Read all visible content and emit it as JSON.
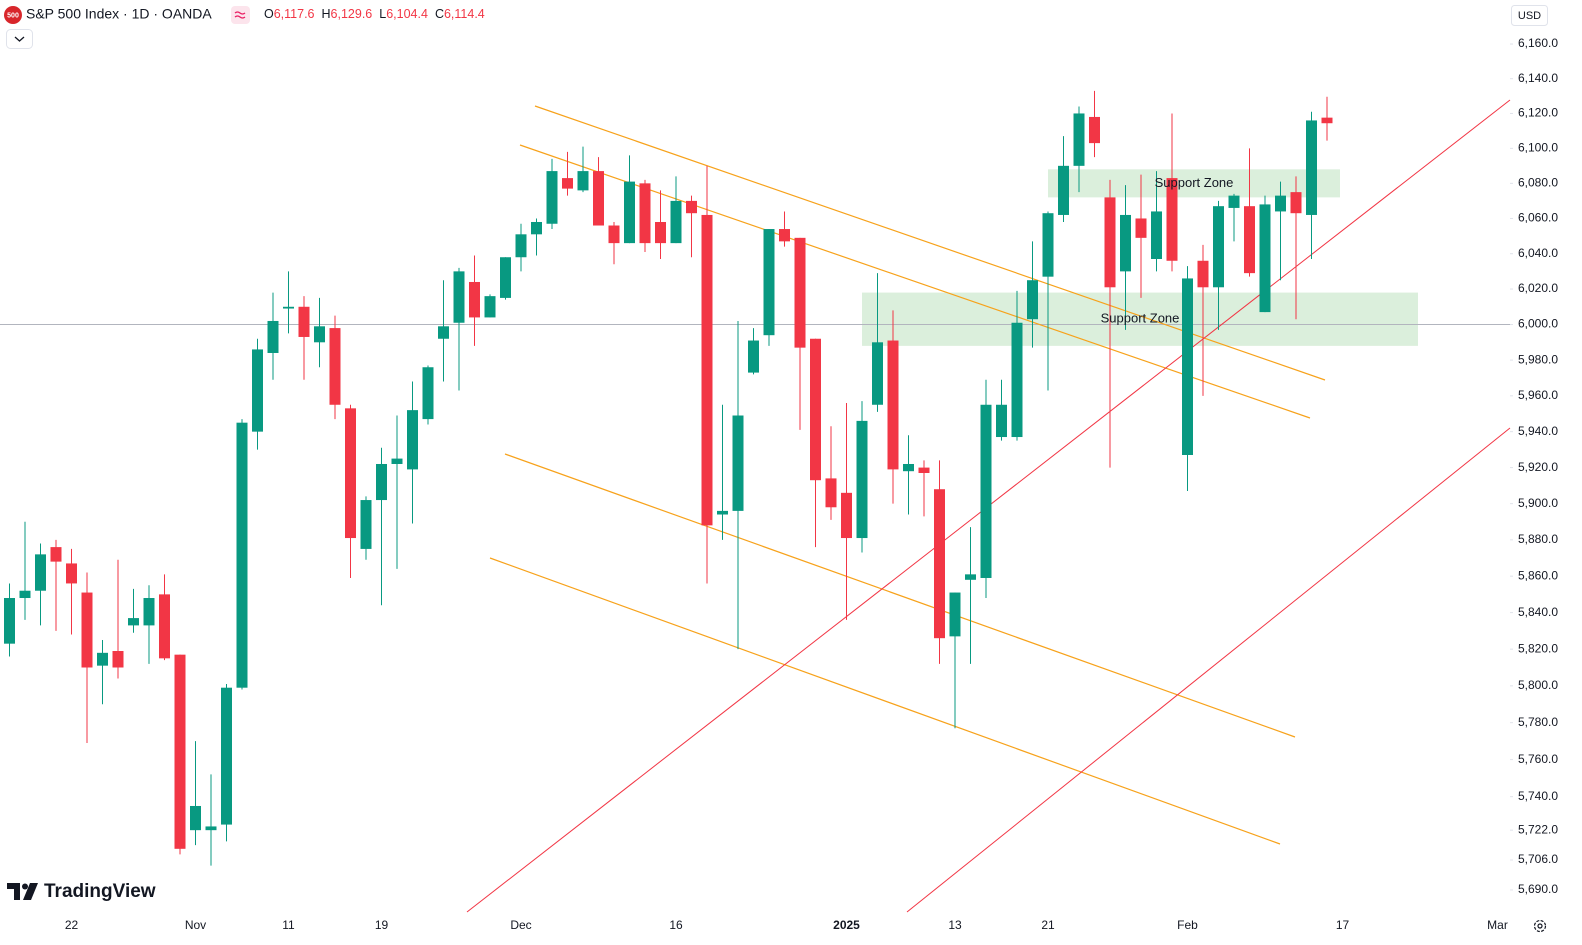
{
  "chart_data": {
    "type": "candlestick",
    "title": "S&P 500 Index · 1D · OANDA",
    "symbol_badge": "500",
    "currency": "USD",
    "brand": "TradingView",
    "ohlc_header": [
      {
        "key": "O",
        "value": 6117.6,
        "label": "6,117.6"
      },
      {
        "key": "H",
        "value": 6129.6,
        "label": "6,129.6"
      },
      {
        "key": "L",
        "value": 6104.4,
        "label": "6,104.4"
      },
      {
        "key": "C",
        "value": 6114.4,
        "label": "6,114.4"
      }
    ],
    "log": true,
    "up_color": "#089981",
    "down_color": "#f23645",
    "ylim": [
      5679.3,
      6185.5
    ],
    "yticks": [
      {
        "value": 6160,
        "label": "6,160.0"
      },
      {
        "value": 6140,
        "label": "6,140.0"
      },
      {
        "value": 6120,
        "label": "6,120.0"
      },
      {
        "value": 6100,
        "label": "6,100.0"
      },
      {
        "value": 6080,
        "label": "6,080.0"
      },
      {
        "value": 6060,
        "label": "6,060.0"
      },
      {
        "value": 6040,
        "label": "6,040.0"
      },
      {
        "value": 6020,
        "label": "6,020.0"
      },
      {
        "value": 6000,
        "label": "6,000.0"
      },
      {
        "value": 5980,
        "label": "5,980.0"
      },
      {
        "value": 5960,
        "label": "5,960.0"
      },
      {
        "value": 5940,
        "label": "5,940.0"
      },
      {
        "value": 5920,
        "label": "5,920.0"
      },
      {
        "value": 5900,
        "label": "5,900.0"
      },
      {
        "value": 5880,
        "label": "5,880.0"
      },
      {
        "value": 5860,
        "label": "5,860.0"
      },
      {
        "value": 5840,
        "label": "5,840.0"
      },
      {
        "value": 5820,
        "label": "5,820.0"
      },
      {
        "value": 5800,
        "label": "5,800.0"
      },
      {
        "value": 5780,
        "label": "5,780.0"
      },
      {
        "value": 5760,
        "label": "5,760.0"
      },
      {
        "value": 5740,
        "label": "5,740.0"
      },
      {
        "value": 5722,
        "label": "5,722.0"
      },
      {
        "value": 5706,
        "label": "5,706.0"
      },
      {
        "value": 5690,
        "label": "5,690.0"
      }
    ],
    "price_line": 6000,
    "annotations": [
      {
        "text": "Support Zone",
        "range": [
          6072,
          6088
        ]
      },
      {
        "text": "Support Zone",
        "range": [
          5988,
          6018
        ]
      }
    ],
    "categories": [
      null,
      null,
      null,
      null,
      "22",
      null,
      null,
      null,
      null,
      null,
      null,
      null,
      "Nov",
      null,
      null,
      null,
      null,
      null,
      "11",
      null,
      null,
      null,
      null,
      null,
      "19",
      null,
      null,
      null,
      null,
      null,
      null,
      null,
      null,
      "Dec",
      null,
      null,
      null,
      null,
      null,
      null,
      null,
      null,
      null,
      "16",
      null,
      null,
      null,
      null,
      null,
      null,
      null,
      null,
      null,
      null,
      "2025",
      null,
      null,
      null,
      null,
      null,
      null,
      "13",
      null,
      null,
      null,
      null,
      null,
      "21",
      null,
      null,
      null,
      null,
      null,
      null,
      null,
      null,
      "Feb",
      null,
      null,
      null,
      null,
      null,
      null,
      null,
      null,
      null,
      "17",
      null,
      null,
      null,
      null,
      null,
      null,
      null,
      null,
      null,
      "Mar"
    ],
    "open": [
      5823,
      5848,
      5852,
      5876,
      5867,
      5851,
      5811,
      5819,
      5833,
      5833,
      5850,
      5817,
      5722,
      5722,
      5725,
      5799,
      5940,
      5984,
      6009,
      6010,
      5990,
      5998,
      5953,
      5875,
      5902,
      5922,
      5919,
      5947,
      5992,
      6001,
      6024,
      6004,
      6015,
      6038,
      6051,
      6057,
      6083,
      6076,
      6087,
      6056,
      6046,
      6080,
      6058,
      6046,
      6070,
      6062,
      5894,
      5896,
      5973,
      5994,
      6054,
      6049,
      5992,
      5914,
      5906,
      5881,
      5955,
      5991,
      5918,
      5920,
      5908,
      5827,
      5858,
      5859,
      5937,
      5937,
      6003,
      6027,
      6062,
      6090,
      6118,
      6072,
      6030,
      6060,
      6037,
      6083,
      5927,
      6036,
      6021,
      6066,
      6067,
      6007,
      6064,
      6075,
      6062,
      6117.6,
      null,
      null,
      null,
      null,
      null,
      null,
      null,
      null,
      null,
      null,
      null
    ],
    "high": [
      5856,
      5890,
      5878,
      5880,
      5875,
      5862,
      5825,
      5869,
      5853,
      5855,
      5861,
      5817,
      5770,
      5752,
      5801,
      5947,
      5992,
      6018,
      6030,
      6016,
      6015,
      6005,
      5955,
      5904,
      5931,
      5949,
      5968,
      5977,
      6025,
      6032,
      6039,
      6017,
      6038,
      6057,
      6060,
      6094,
      6098,
      6101,
      6095,
      6058,
      6096,
      6082,
      6076,
      6084,
      6073,
      6090,
      5955,
      6002,
      5998,
      6054,
      6064,
      6049,
      5992,
      5943,
      5956,
      5957,
      6029,
      6008,
      5938,
      5924,
      5924,
      5851,
      5887,
      5969,
      5969,
      6019,
      6047,
      6064,
      6107,
      6124,
      6133,
      6082,
      6079,
      6085,
      6087,
      6120,
      6033,
      6045,
      6070,
      6074,
      6100,
      6073,
      6081,
      6084,
      6121,
      6129.6,
      null,
      null,
      null,
      null,
      null,
      null,
      null,
      null,
      null,
      null,
      null
    ],
    "low": [
      5816,
      5836,
      5833,
      5830,
      5828,
      5769,
      5790,
      5804,
      5829,
      5812,
      5814,
      5709,
      5714,
      5703,
      5716,
      5798,
      5930,
      5969,
      5995,
      5969,
      5976,
      5947,
      5859,
      5869,
      5844,
      5864,
      5889,
      5944,
      5968,
      5963,
      5988,
      6004,
      6014,
      6030,
      6039,
      6054,
      6073,
      6075,
      6056,
      6034,
      6046,
      6041,
      6037,
      6046,
      6038,
      5856,
      5880,
      5820,
      5972,
      5988,
      6044,
      5941,
      5876,
      5891,
      5836,
      5873,
      5951,
      5900,
      5894,
      5893,
      5812,
      5777,
      5812,
      5848,
      5935,
      5935,
      5987,
      5963,
      6058,
      6075,
      6095,
      5920,
      5997,
      6015,
      6030,
      6030,
      5907,
      5960,
      5997,
      6047,
      6027,
      6007,
      6025,
      6003,
      6037,
      6104.4,
      null,
      null,
      null,
      null,
      null,
      null,
      null,
      null,
      null,
      null,
      null
    ],
    "close": [
      5848,
      5852,
      5872,
      5868,
      5856,
      5810,
      5818,
      5810,
      5837,
      5848,
      5815,
      5712,
      5735,
      5724,
      5799,
      5945,
      5986,
      6002,
      6010,
      5993,
      5999,
      5955,
      5881,
      5902,
      5922,
      5925,
      5952,
      5976,
      5999,
      6030,
      6004,
      6016,
      6038,
      6051,
      6058,
      6087,
      6077,
      6087,
      6056,
      6046,
      6081,
      6046,
      6046,
      6070,
      6063,
      5888,
      5896,
      5949,
      5991,
      6054,
      6047,
      5987,
      5913,
      5898,
      5881,
      5946,
      5990,
      5919,
      5922,
      5917,
      5826,
      5851,
      5861,
      5955,
      5955,
      6001,
      6025,
      6063,
      6090,
      6120,
      6103,
      6021,
      6062,
      6049,
      6064,
      6036,
      6026,
      6021,
      6067,
      6073,
      6029,
      6068,
      6073,
      6063,
      6116,
      6114.4,
      null,
      null,
      null,
      null,
      null,
      null,
      null,
      null,
      null,
      null,
      null
    ]
  }
}
